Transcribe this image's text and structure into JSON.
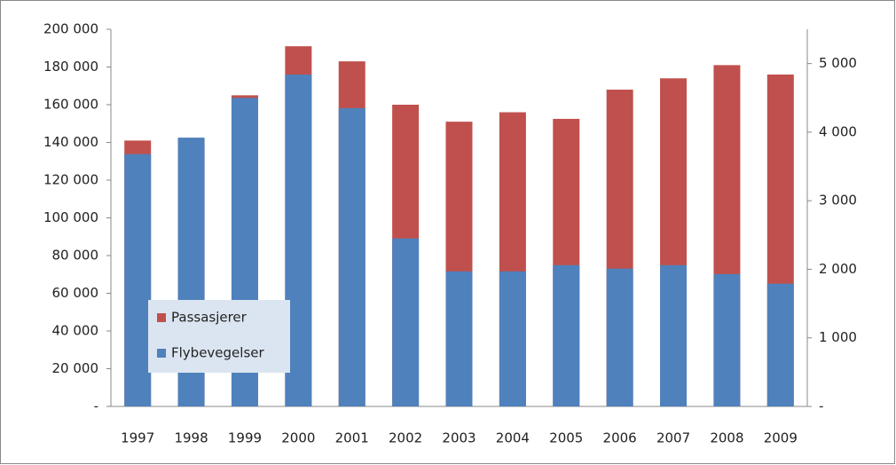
{
  "chart_data": {
    "type": "bar",
    "categories": [
      "1997",
      "1998",
      "1999",
      "2000",
      "2001",
      "2002",
      "2003",
      "2004",
      "2005",
      "2006",
      "2007",
      "2008",
      "2009"
    ],
    "series": [
      {
        "name": "Passasjerer",
        "color": "#c0504d",
        "axis": "y",
        "values": [
          141000,
          142000,
          165000,
          191000,
          183000,
          160000,
          151000,
          156000,
          152500,
          168000,
          174000,
          181000,
          176000
        ]
      },
      {
        "name": "Flybevegelser",
        "color": "#4f81bd",
        "axis": "y2",
        "values": [
          3680,
          3920,
          4500,
          4840,
          4350,
          2450,
          1970,
          1970,
          2060,
          2010,
          2060,
          1930,
          1790
        ]
      }
    ],
    "ylim": [
      0,
      200000
    ],
    "yticks": [
      {
        "value": 0,
        "label": "-"
      },
      {
        "value": 20000,
        "label": "20 000"
      },
      {
        "value": 40000,
        "label": "40 000"
      },
      {
        "value": 60000,
        "label": "60 000"
      },
      {
        "value": 80000,
        "label": "80 000"
      },
      {
        "value": 100000,
        "label": "100 000"
      },
      {
        "value": 120000,
        "label": "120 000"
      },
      {
        "value": 140000,
        "label": "140 000"
      },
      {
        "value": 160000,
        "label": "160 000"
      },
      {
        "value": 180000,
        "label": "180 000"
      },
      {
        "value": 200000,
        "label": "200 000"
      }
    ],
    "y2lim": [
      0,
      5500
    ],
    "y2ticks": [
      {
        "value": 0,
        "label": "-"
      },
      {
        "value": 1000,
        "label": "1 000"
      },
      {
        "value": 2000,
        "label": "2 000"
      },
      {
        "value": 3000,
        "label": "3 000"
      },
      {
        "value": 4000,
        "label": "4 000"
      },
      {
        "value": 5000,
        "label": "5 000"
      }
    ],
    "legend": "lower-left"
  }
}
